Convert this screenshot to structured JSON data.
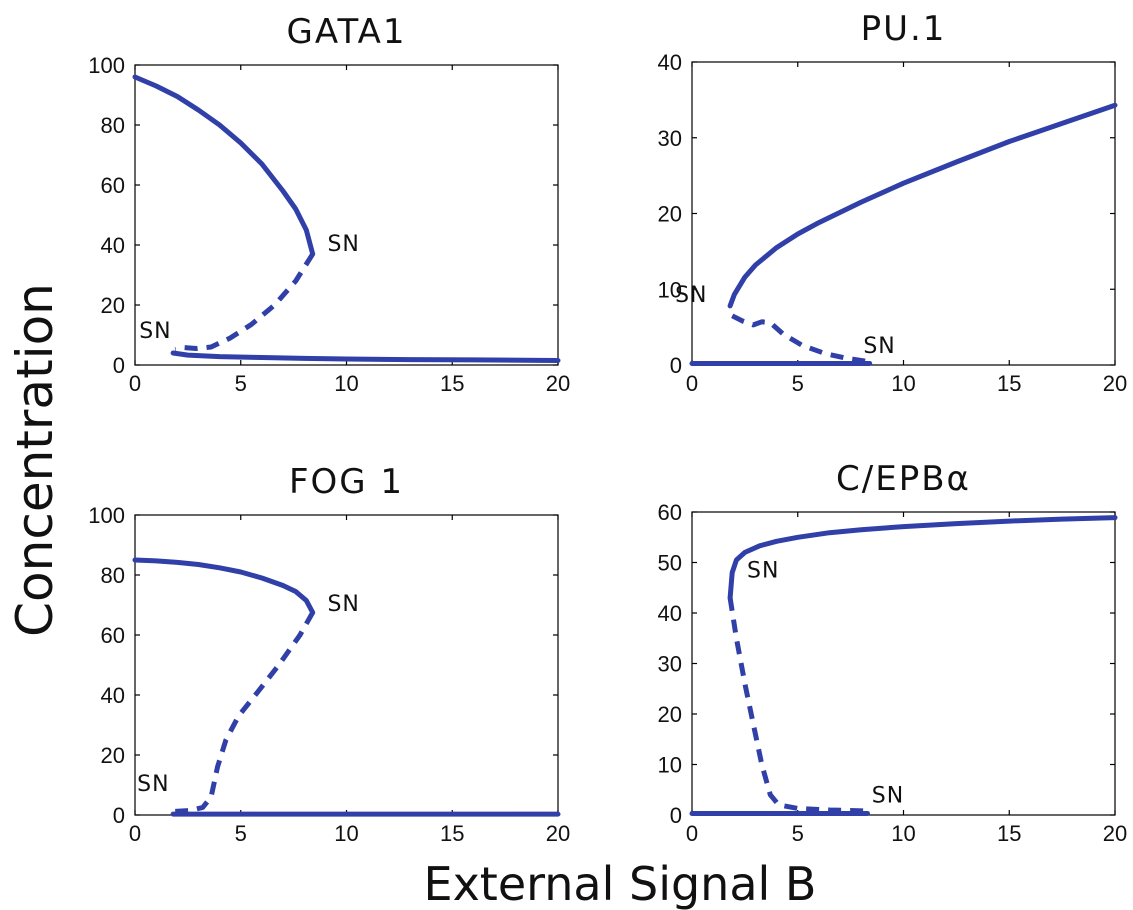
{
  "figure": {
    "ylabel": "Concentration",
    "xlabel": "External Signal B",
    "line_color": "#3040a8"
  },
  "chart_data": [
    {
      "type": "line",
      "title": "GATA1",
      "xlim": [
        0,
        20
      ],
      "ylim": [
        0,
        100
      ],
      "xticks": [
        "0",
        "5",
        "10",
        "15",
        "20"
      ],
      "yticks": [
        "0",
        "20",
        "40",
        "60",
        "80",
        "100"
      ],
      "series": [
        {
          "style": "solid",
          "x": [
            0,
            1,
            2,
            3,
            4,
            5,
            6,
            7,
            7.6,
            8.1,
            8.4
          ],
          "y": [
            96,
            93,
            89.5,
            85,
            80,
            74,
            67,
            58,
            52,
            45,
            37
          ]
        },
        {
          "style": "dashed",
          "x": [
            8.4,
            7.6,
            6.6,
            5.5,
            4.5,
            3.6,
            2.9,
            2.3,
            1.9
          ],
          "y": [
            37,
            28,
            20,
            13.5,
            9,
            6,
            5.5,
            5.8,
            5.2
          ]
        },
        {
          "style": "solid",
          "x": [
            1.8,
            2.5,
            4,
            6,
            8,
            10,
            13,
            16,
            20
          ],
          "y": [
            4,
            3.3,
            2.8,
            2.5,
            2.2,
            2,
            1.8,
            1.7,
            1.5
          ]
        }
      ],
      "annotations": [
        {
          "text": "SN",
          "x": 9.1,
          "y": 38
        },
        {
          "text": "SN",
          "x": 0.2,
          "y": 9
        }
      ]
    },
    {
      "type": "line",
      "title": "PU.1",
      "xlim": [
        0,
        20
      ],
      "ylim": [
        0,
        40
      ],
      "xticks": [
        "0",
        "5",
        "10",
        "15",
        "20"
      ],
      "yticks": [
        "0",
        "10",
        "20",
        "30",
        "40"
      ],
      "series": [
        {
          "style": "solid",
          "x": [
            1.8,
            2,
            2.5,
            3,
            4,
            5,
            6,
            8,
            10,
            12.5,
            15,
            17.5,
            20
          ],
          "y": [
            7.8,
            9.3,
            11.6,
            13.2,
            15.5,
            17.3,
            18.8,
            21.5,
            24,
            26.8,
            29.5,
            31.9,
            34.3
          ]
        },
        {
          "style": "dashed",
          "x": [
            1.9,
            2.4,
            2.9,
            3.3,
            3.7,
            4.3,
            5.2,
            6.3,
            7.3,
            8.2
          ],
          "y": [
            6.5,
            5.8,
            5.3,
            5.7,
            5.6,
            4.1,
            2.6,
            1.5,
            0.9,
            0.5
          ]
        },
        {
          "style": "solid",
          "x": [
            0,
            8.4
          ],
          "y": [
            0.2,
            0.2
          ]
        }
      ],
      "annotations": [
        {
          "text": "SN",
          "x": -0.8,
          "y": 8.3
        },
        {
          "text": "SN",
          "x": 8.1,
          "y": 1.6
        }
      ]
    },
    {
      "type": "line",
      "title": "FOG 1",
      "xlim": [
        0,
        20
      ],
      "ylim": [
        0,
        100
      ],
      "xticks": [
        "0",
        "5",
        "10",
        "15",
        "20"
      ],
      "yticks": [
        "0",
        "20",
        "40",
        "60",
        "80",
        "100"
      ],
      "series": [
        {
          "style": "solid",
          "x": [
            0,
            1,
            2,
            3,
            4,
            5,
            6,
            7,
            7.6,
            8.1,
            8.4
          ],
          "y": [
            85,
            84.7,
            84.2,
            83.5,
            82.4,
            81,
            79,
            76.5,
            74.5,
            71.5,
            67.5
          ]
        },
        {
          "style": "dashed",
          "x": [
            8.4,
            7.8,
            6.8,
            5.8,
            4.9,
            4.3,
            3.9,
            3.6,
            3.2,
            2.6,
            1.9
          ],
          "y": [
            67.5,
            60,
            50,
            41,
            33,
            25,
            16,
            6,
            2.5,
            1.5,
            1.2
          ]
        },
        {
          "style": "solid",
          "x": [
            1.8,
            20
          ],
          "y": [
            0.3,
            0.3
          ]
        }
      ],
      "annotations": [
        {
          "text": "SN",
          "x": 9.1,
          "y": 68
        },
        {
          "text": "SN",
          "x": 0.1,
          "y": 8
        }
      ]
    },
    {
      "type": "line",
      "title": "C/EPBα",
      "xlim": [
        0,
        20
      ],
      "ylim": [
        0,
        60
      ],
      "xticks": [
        "0",
        "5",
        "10",
        "15",
        "20"
      ],
      "yticks": [
        "0",
        "10",
        "20",
        "30",
        "40",
        "50",
        "60"
      ],
      "series": [
        {
          "style": "solid",
          "x": [
            1.8,
            1.9,
            2.1,
            2.5,
            3.2,
            4,
            5,
            6.5,
            8,
            10,
            12.5,
            15,
            17.5,
            20
          ],
          "y": [
            43,
            48,
            50.5,
            52,
            53.3,
            54.2,
            55,
            55.9,
            56.5,
            57.1,
            57.7,
            58.2,
            58.6,
            58.9
          ]
        },
        {
          "style": "dashed",
          "x": [
            1.8,
            2.1,
            2.5,
            2.9,
            3.3,
            3.7,
            4.1,
            5,
            6.5,
            8.3
          ],
          "y": [
            43,
            35,
            26,
            18,
            10,
            4,
            2,
            1.3,
            1,
            0.8
          ]
        },
        {
          "style": "solid",
          "x": [
            0,
            8.3
          ],
          "y": [
            0.3,
            0.3
          ]
        }
      ],
      "annotations": [
        {
          "text": "SN",
          "x": 2.6,
          "y": 47
        },
        {
          "text": "SN",
          "x": 8.5,
          "y": 2.5
        }
      ]
    }
  ]
}
